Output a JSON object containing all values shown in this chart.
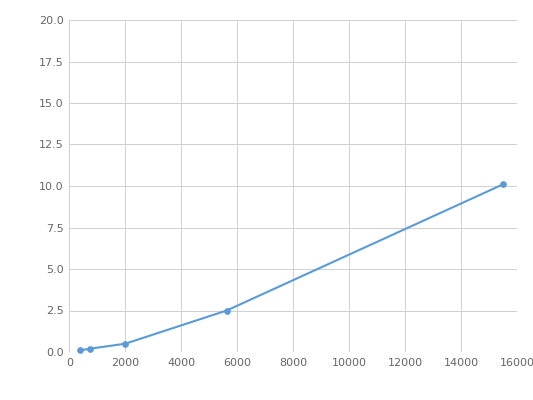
{
  "x": [
    375,
    750,
    2000,
    5625,
    15500
  ],
  "y": [
    0.1,
    0.2,
    0.5,
    2.5,
    10.1
  ],
  "line_color": "#5b9bd5",
  "marker": "o",
  "marker_size": 4,
  "marker_facecolor": "#5b9bd5",
  "xlim": [
    0,
    16000
  ],
  "ylim": [
    0,
    20.0
  ],
  "xticks": [
    0,
    2000,
    4000,
    6000,
    8000,
    10000,
    12000,
    14000,
    16000
  ],
  "yticks": [
    0.0,
    2.5,
    5.0,
    7.5,
    10.0,
    12.5,
    15.0,
    17.5,
    20.0
  ],
  "grid_color": "#d0d0d0",
  "background_color": "#ffffff"
}
